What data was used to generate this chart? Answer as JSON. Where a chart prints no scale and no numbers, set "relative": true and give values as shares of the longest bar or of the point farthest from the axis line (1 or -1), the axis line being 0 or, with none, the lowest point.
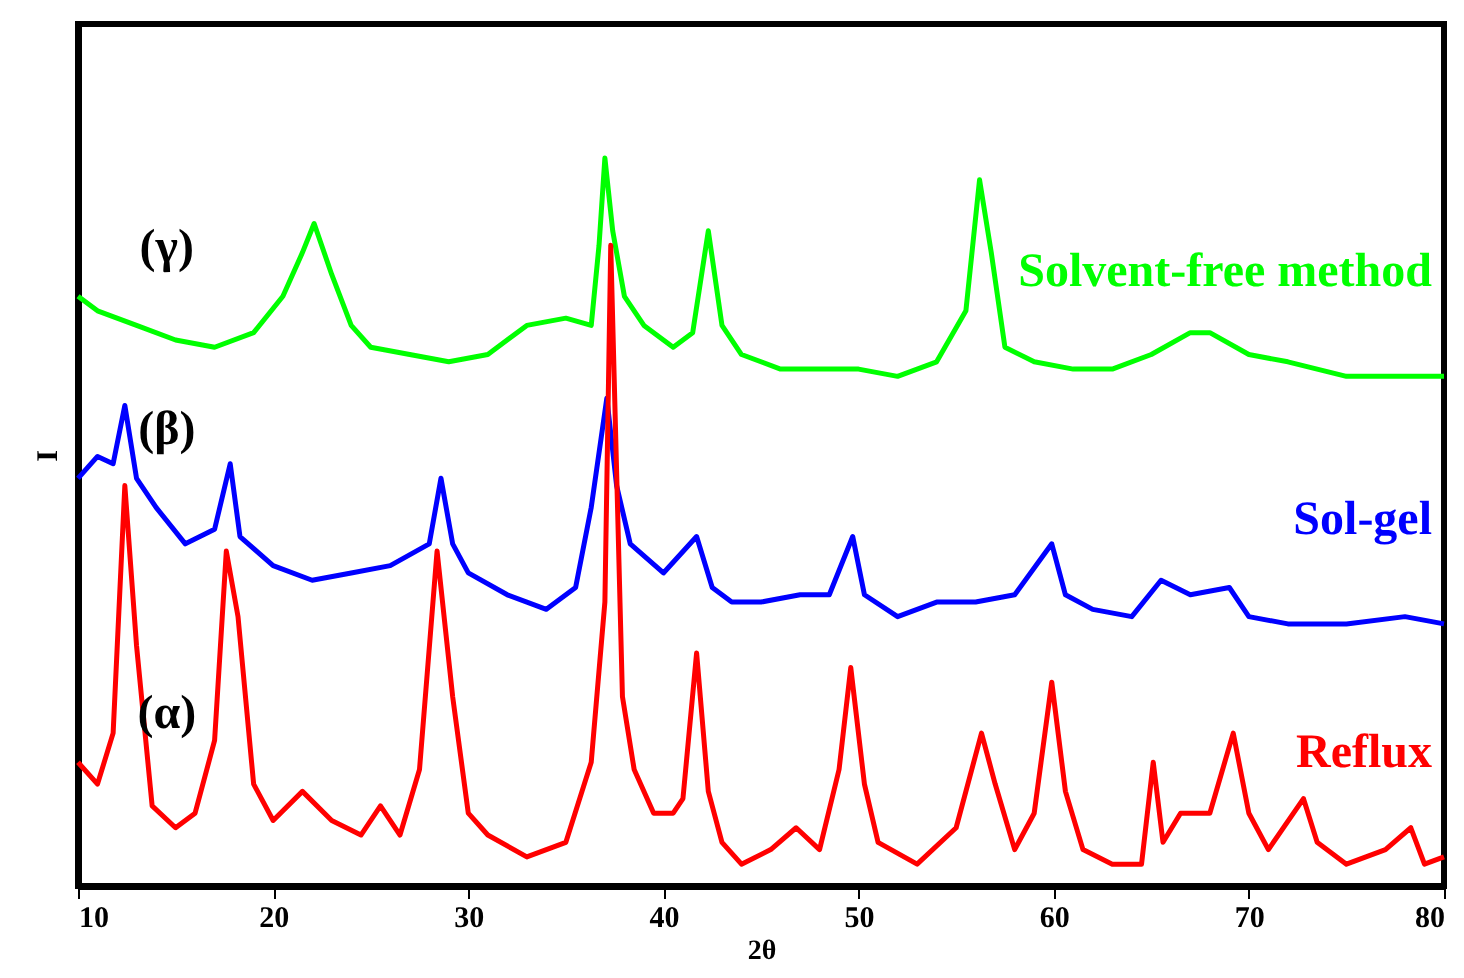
{
  "chart_data": {
    "type": "line",
    "xlabel": "2θ",
    "ylabel": "I",
    "relative": true,
    "xlim": [
      10,
      80
    ],
    "xticks": [
      10,
      20,
      30,
      40,
      50,
      60,
      70,
      80
    ],
    "grid": false,
    "marker": "none",
    "line_style": "solid",
    "annotations": [
      "(γ)",
      "(β)",
      "(α)"
    ],
    "series": [
      {
        "name": "Solvent-free method",
        "color": "#00ff00",
        "x": [
          10,
          11,
          13,
          15,
          17,
          19,
          20.5,
          21.5,
          22.1,
          23,
          24,
          25,
          27,
          29,
          31,
          33,
          35,
          36.3,
          36.7,
          37,
          37.4,
          38,
          39,
          40.5,
          41.5,
          42.3,
          43,
          44,
          46,
          48,
          50,
          52,
          54,
          55.5,
          56.2,
          56.8,
          57.5,
          59,
          61,
          63,
          65,
          67,
          68,
          70,
          72,
          75,
          78,
          80
        ],
        "values": [
          0.81,
          0.79,
          0.77,
          0.75,
          0.74,
          0.76,
          0.81,
          0.87,
          0.91,
          0.84,
          0.77,
          0.74,
          0.73,
          0.72,
          0.73,
          0.77,
          0.78,
          0.77,
          0.88,
          1.0,
          0.9,
          0.81,
          0.77,
          0.74,
          0.76,
          0.9,
          0.77,
          0.73,
          0.71,
          0.71,
          0.71,
          0.7,
          0.72,
          0.79,
          0.97,
          0.87,
          0.74,
          0.72,
          0.71,
          0.71,
          0.73,
          0.76,
          0.76,
          0.73,
          0.72,
          0.7,
          0.7,
          0.7
        ]
      },
      {
        "name": "Sol-gel",
        "color": "#0000ff",
        "x": [
          10,
          11,
          11.8,
          12.4,
          13,
          14,
          15.5,
          17,
          17.8,
          18.3,
          20,
          22,
          24,
          26,
          28,
          28.6,
          29.2,
          30,
          32,
          34,
          35.5,
          36.3,
          37.1,
          37.6,
          38.3,
          40,
          41.7,
          42.5,
          43.5,
          45,
          47,
          48.5,
          49.7,
          50.3,
          52,
          54,
          56,
          58,
          59.9,
          60.6,
          62,
          64,
          65.5,
          67,
          69,
          70,
          72,
          75,
          78,
          80
        ],
        "values": [
          0.56,
          0.59,
          0.58,
          0.66,
          0.56,
          0.52,
          0.47,
          0.49,
          0.58,
          0.48,
          0.44,
          0.42,
          0.43,
          0.44,
          0.47,
          0.56,
          0.47,
          0.43,
          0.4,
          0.38,
          0.41,
          0.52,
          0.67,
          0.55,
          0.47,
          0.43,
          0.48,
          0.41,
          0.39,
          0.39,
          0.4,
          0.4,
          0.48,
          0.4,
          0.37,
          0.39,
          0.39,
          0.4,
          0.47,
          0.4,
          0.38,
          0.37,
          0.42,
          0.4,
          0.41,
          0.37,
          0.36,
          0.36,
          0.37,
          0.36
        ]
      },
      {
        "name": "Reflux",
        "color": "#ff0000",
        "x": [
          10,
          11,
          11.8,
          12.4,
          13,
          13.8,
          15,
          16,
          17,
          17.6,
          18.2,
          19,
          20,
          21.5,
          23,
          24.5,
          25.5,
          26.5,
          27.5,
          28.4,
          29.2,
          30,
          31,
          33,
          35,
          36.3,
          37,
          37.3,
          37.9,
          38.5,
          39.5,
          40.5,
          41,
          41.7,
          42.3,
          43,
          44,
          45.5,
          46.8,
          48,
          49,
          49.6,
          50.3,
          51,
          53,
          55,
          56.3,
          57,
          58,
          59,
          59.9,
          60.6,
          61.5,
          63,
          64.5,
          65.1,
          65.6,
          66.5,
          68,
          69.2,
          70,
          71,
          72.8,
          73.5,
          75,
          77,
          78.3,
          79,
          80
        ],
        "values": [
          0.17,
          0.14,
          0.21,
          0.55,
          0.33,
          0.11,
          0.08,
          0.1,
          0.2,
          0.46,
          0.37,
          0.14,
          0.09,
          0.13,
          0.09,
          0.07,
          0.11,
          0.07,
          0.16,
          0.46,
          0.26,
          0.1,
          0.07,
          0.04,
          0.06,
          0.17,
          0.39,
          0.88,
          0.26,
          0.16,
          0.1,
          0.1,
          0.12,
          0.32,
          0.13,
          0.06,
          0.03,
          0.05,
          0.08,
          0.05,
          0.16,
          0.3,
          0.14,
          0.06,
          0.03,
          0.08,
          0.21,
          0.14,
          0.05,
          0.1,
          0.28,
          0.13,
          0.05,
          0.03,
          0.03,
          0.17,
          0.06,
          0.1,
          0.1,
          0.21,
          0.1,
          0.05,
          0.12,
          0.06,
          0.03,
          0.05,
          0.08,
          0.03,
          0.04
        ]
      }
    ]
  }
}
